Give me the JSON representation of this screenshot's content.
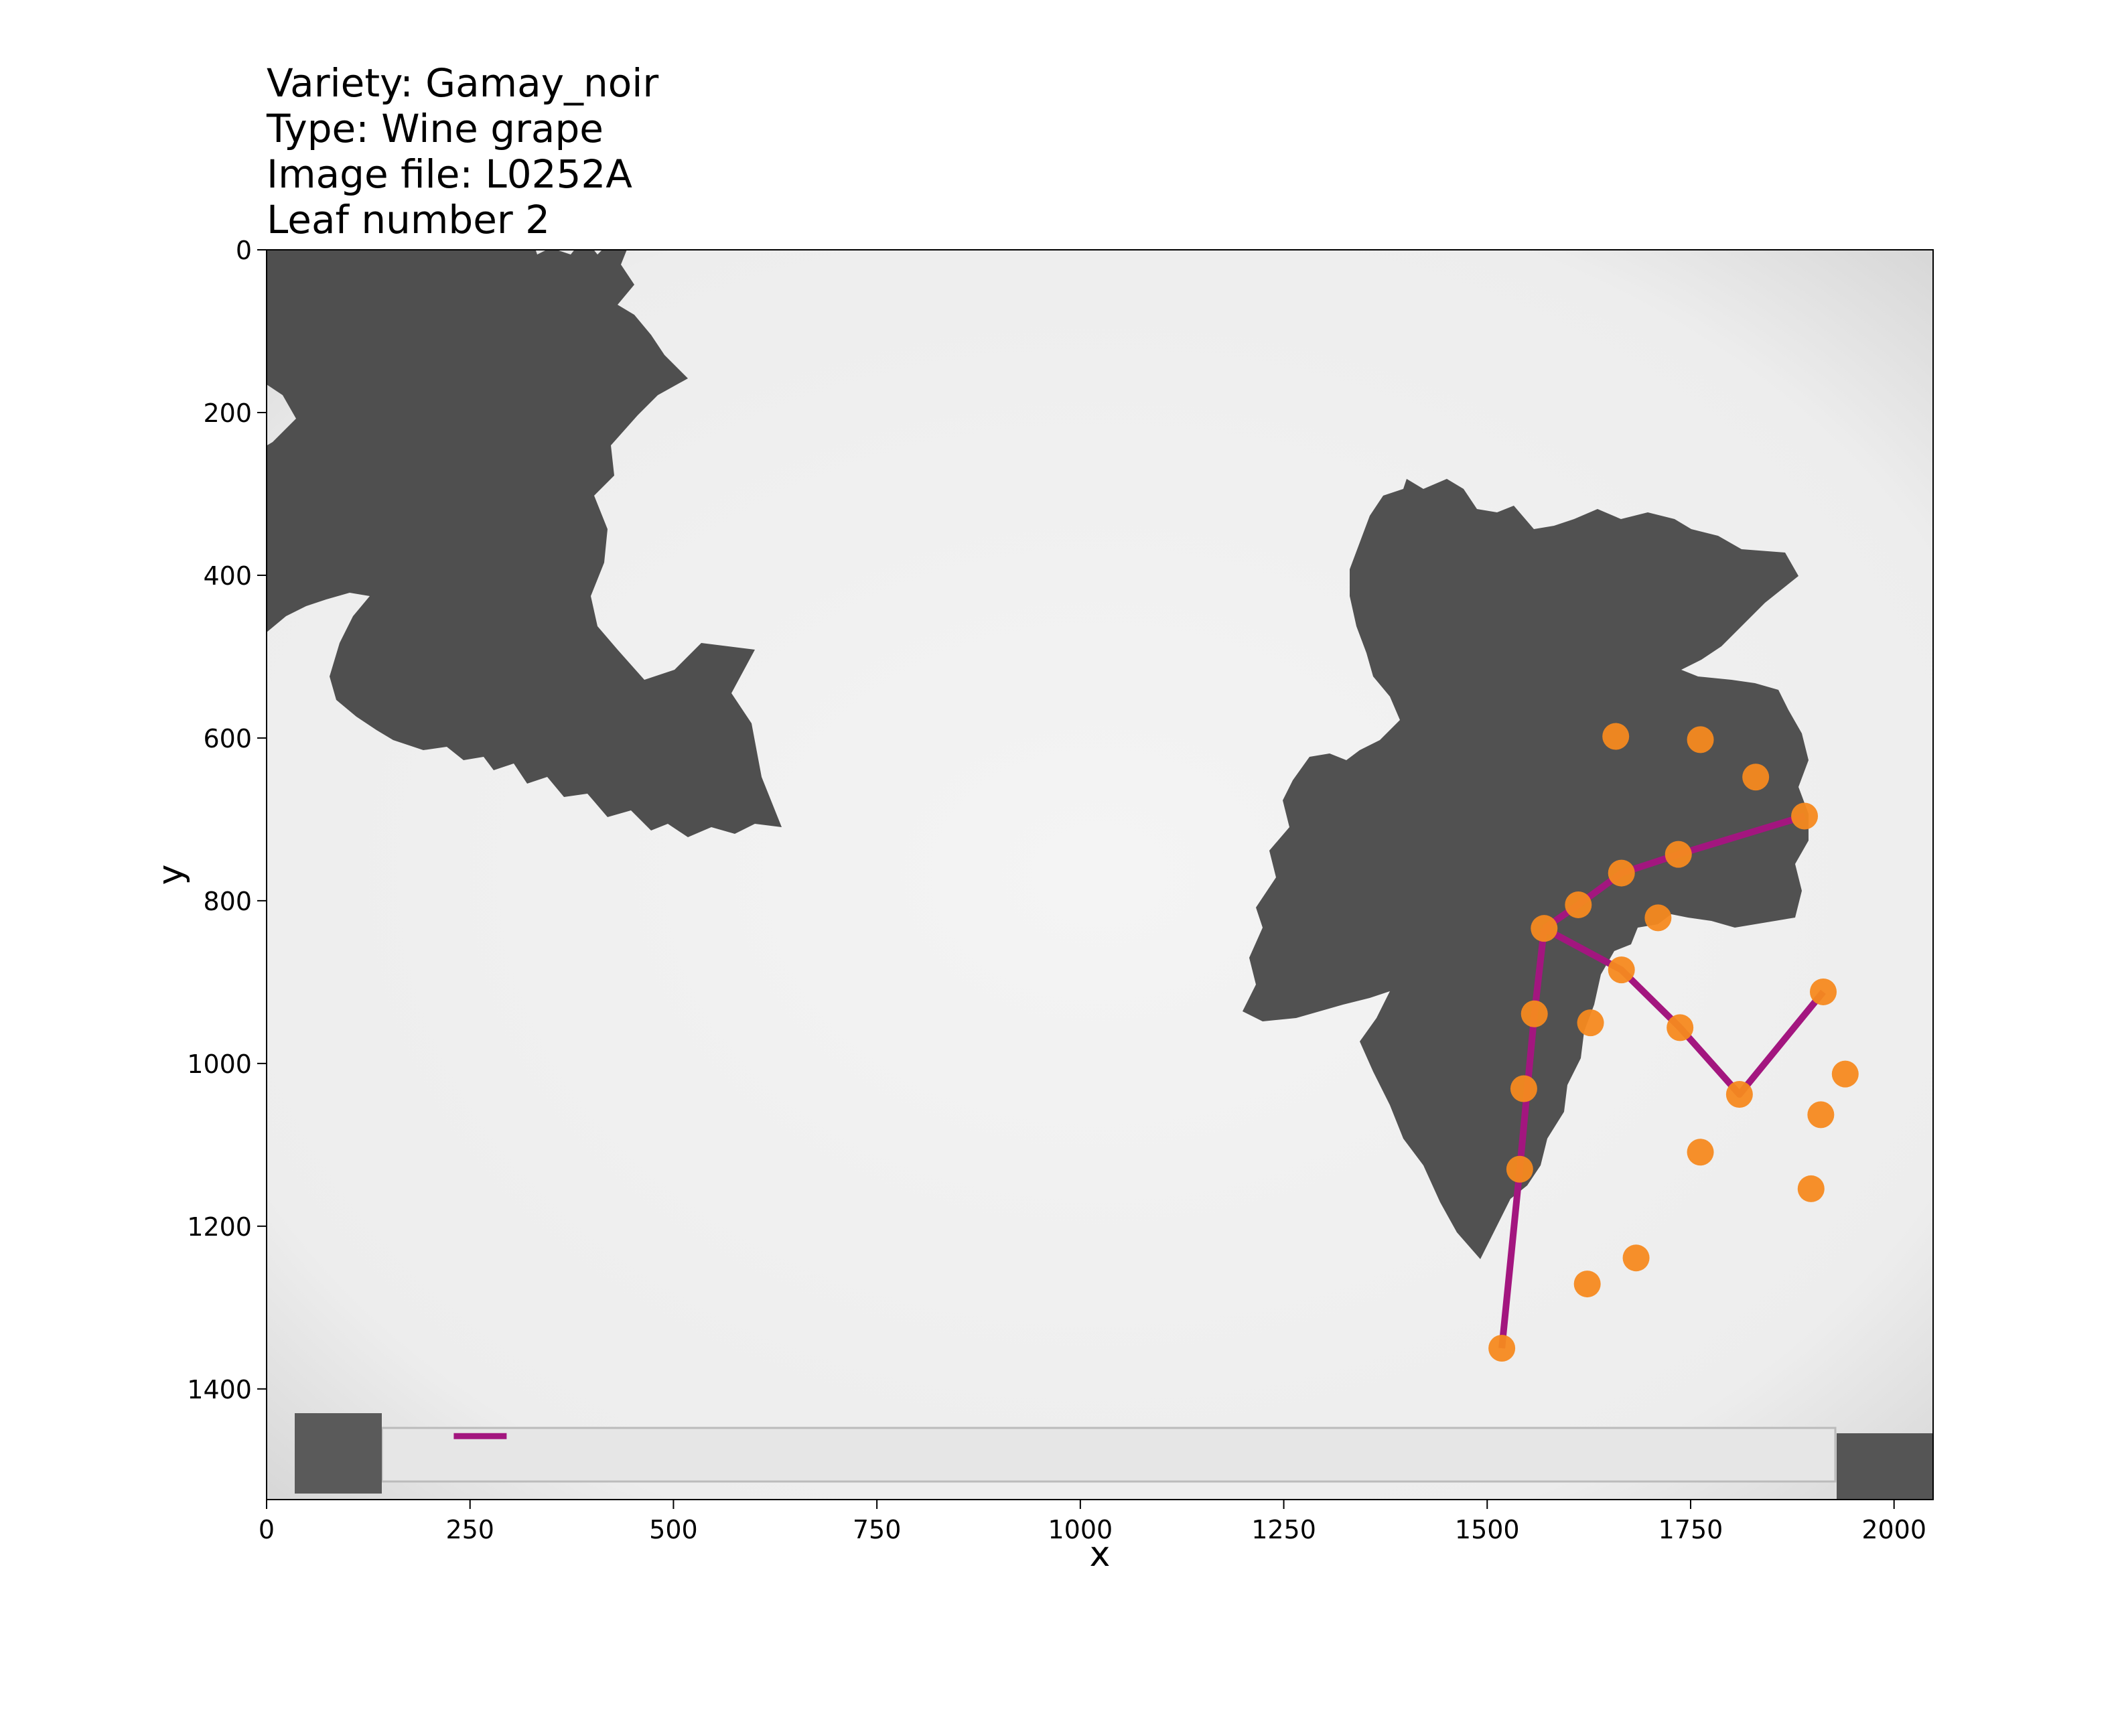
{
  "title_lines": [
    "Variety: Gamay_noir",
    "Type: Wine grape",
    "Image file: L0252A",
    "Leaf number 2"
  ],
  "colors": {
    "landmark": "#f5891f",
    "outline": "#a3167f",
    "leaf": "#4f4f4f",
    "paper": "#f1f1f1"
  },
  "chart_data": {
    "type": "scatter",
    "title": "",
    "xlabel": "x",
    "ylabel": "y",
    "xlim": [
      0,
      2048
    ],
    "ylim": [
      1536,
      0
    ],
    "xticks": [
      0,
      250,
      500,
      750,
      1000,
      1250,
      1500,
      1750,
      2000
    ],
    "yticks": [
      0,
      200,
      400,
      600,
      800,
      1000,
      1200,
      1400
    ],
    "grid": false,
    "legend": "none",
    "landmarks": {
      "x": [
        1658,
        1762,
        1830,
        1890,
        1735,
        1665,
        1612,
        1570,
        1710,
        1665,
        1913,
        1940,
        1910,
        1810,
        1737,
        1627,
        1558,
        1545,
        1540,
        1762,
        1898,
        1683,
        1623,
        1518
      ],
      "y": [
        598,
        602,
        648,
        696,
        743,
        766,
        805,
        834,
        821,
        885,
        912,
        1013,
        1063,
        1038,
        956,
        950,
        939,
        1031,
        1130,
        1109,
        1154,
        1239,
        1271,
        1350
      ]
    },
    "outline_paths": [
      {
        "name": "petiole-to-tip",
        "x": [
          1518,
          1540,
          1558,
          1570
        ],
        "y": [
          1350,
          1130,
          939,
          834
        ]
      },
      {
        "name": "main-vein-upper",
        "x": [
          1570,
          1612,
          1665,
          1735,
          1890
        ],
        "y": [
          834,
          805,
          766,
          743,
          696
        ]
      },
      {
        "name": "main-vein-right",
        "x": [
          1570,
          1665,
          1737,
          1810,
          1913
        ],
        "y": [
          834,
          885,
          956,
          1038,
          912
        ]
      }
    ],
    "scale_bar": {
      "x": [
        230,
        295
      ],
      "y": [
        1458,
        1458
      ]
    }
  }
}
